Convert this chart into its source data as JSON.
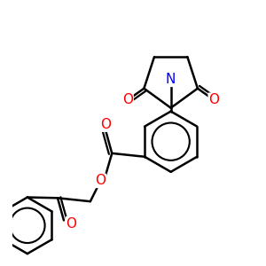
{
  "bg_color": "#ffffff",
  "line_color": "#000000",
  "bond_width": 1.8,
  "atom_colors": {
    "N": "#0000ff",
    "O": "#ff0000",
    "C": "#000000"
  },
  "font_size_atoms": 11
}
